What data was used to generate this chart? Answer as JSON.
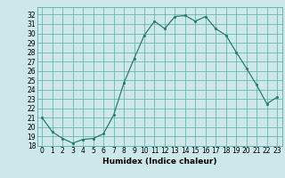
{
  "x": [
    0,
    1,
    2,
    3,
    4,
    5,
    6,
    7,
    8,
    9,
    10,
    11,
    12,
    13,
    14,
    15,
    16,
    17,
    18,
    19,
    20,
    21,
    22,
    23
  ],
  "y": [
    21.0,
    19.5,
    18.8,
    18.3,
    18.7,
    18.8,
    19.3,
    21.3,
    24.7,
    27.3,
    29.8,
    31.3,
    30.5,
    31.8,
    31.9,
    31.3,
    31.8,
    30.5,
    29.8,
    28.0,
    26.3,
    24.5,
    22.5,
    23.2
  ],
  "xlabel": "Humidex (Indice chaleur)",
  "xlim": [
    -0.5,
    23.5
  ],
  "ylim": [
    18,
    32.8
  ],
  "yticks": [
    18,
    19,
    20,
    21,
    22,
    23,
    24,
    25,
    26,
    27,
    28,
    29,
    30,
    31,
    32
  ],
  "xtick_labels": [
    "0",
    "1",
    "2",
    "3",
    "4",
    "5",
    "6",
    "7",
    "8",
    "9",
    "10",
    "11",
    "12",
    "13",
    "14",
    "15",
    "16",
    "17",
    "18",
    "19",
    "20",
    "21",
    "22",
    "23"
  ],
  "line_color": "#2a7d6b",
  "marker_color": "#2a7d6b",
  "bg_color": "#cce8e8",
  "grid_color": "#5aadaa",
  "label_fontsize": 6.5,
  "tick_fontsize": 5.5
}
